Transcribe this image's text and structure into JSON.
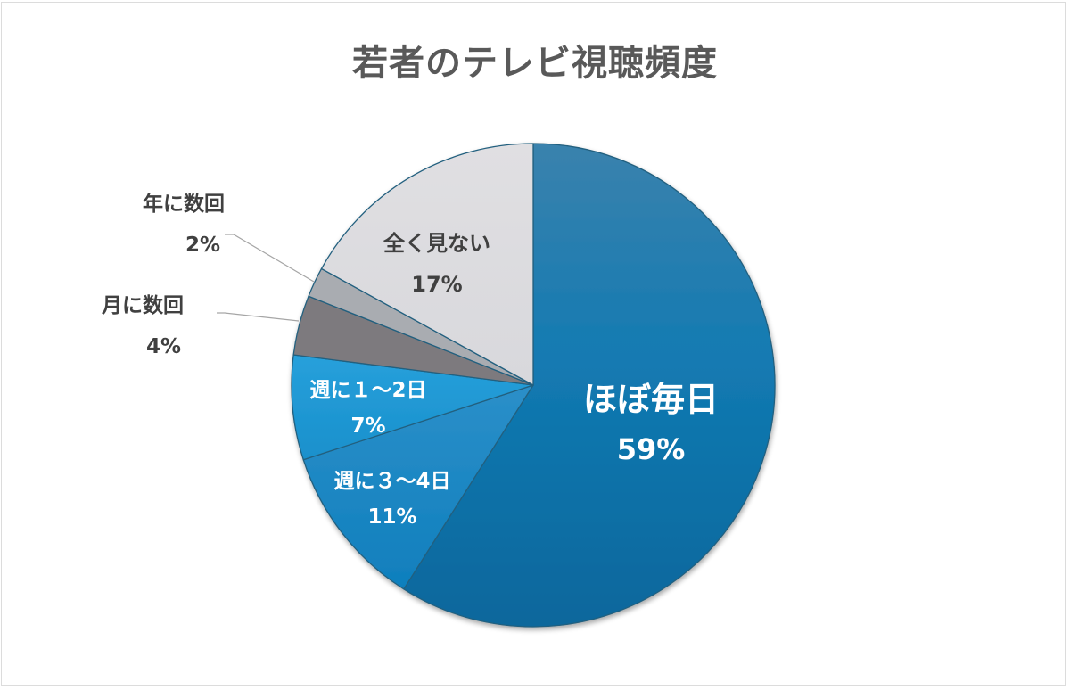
{
  "chart_data": {
    "type": "pie",
    "title": "若者のテレビ視聴頻度",
    "categories": [
      "ほぼ毎日",
      "週に３～4日",
      "週に１～2日",
      "月に数回",
      "年に数回",
      "全く見ない"
    ],
    "values": [
      59,
      11,
      7,
      4,
      2,
      17
    ],
    "unit": "%",
    "start_angle": "12 o'clock, clockwise",
    "colors": [
      "#0e6fa3",
      "#1a86c4",
      "#1f9bd6",
      "#7d7a7e",
      "#a9acb1",
      "#dcdce0"
    ],
    "data_labels": [
      {
        "name": "ほぼ毎日",
        "pct": "59%"
      },
      {
        "name": "週に３～4日",
        "pct": "11%"
      },
      {
        "name": "週に１～2日",
        "pct": "7%"
      },
      {
        "name": "月に数回",
        "pct": "4%"
      },
      {
        "name": "年に数回",
        "pct": "2%"
      },
      {
        "name": "全く見ない",
        "pct": "17%"
      }
    ],
    "legend": "none (labels on slices)"
  }
}
